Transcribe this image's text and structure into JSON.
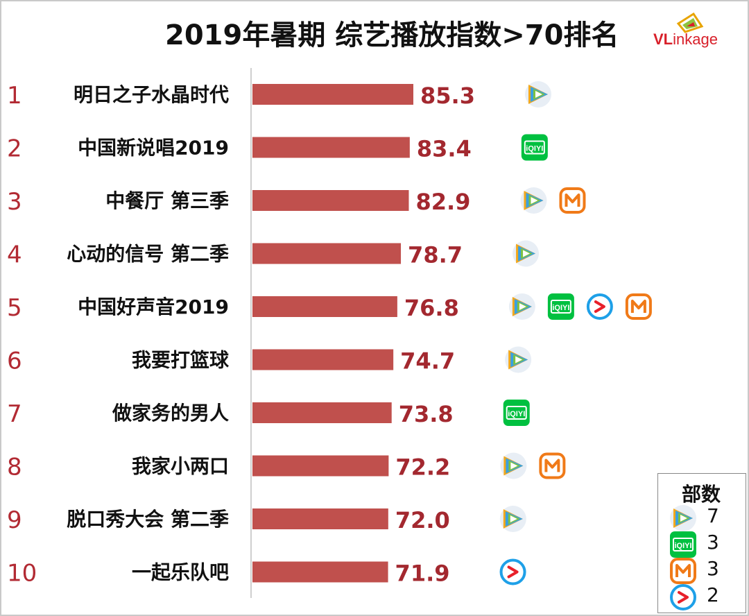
{
  "title": "2019年暑期 综艺播放指数>70排名",
  "brand": {
    "first": "VL",
    "rest": "inkage"
  },
  "colors": {
    "bar": "#c0504d",
    "rank": "#b22a33",
    "value": "#a3282f"
  },
  "chart_data": {
    "type": "bar",
    "orientation": "horizontal",
    "title": "2019年暑期 综艺播放指数>70排名",
    "ranks": [
      "1",
      "2",
      "3",
      "4",
      "5",
      "6",
      "7",
      "8",
      "9",
      "10"
    ],
    "categories": [
      "明日之子水晶时代",
      "中国新说唱2019",
      "中餐厅 第三季",
      "心动的信号 第二季",
      "中国好声音2019",
      "我要打篮球",
      "做家务的男人",
      "我家小两口",
      "脱口秀大会 第二季",
      "一起乐队吧"
    ],
    "values": [
      85.3,
      83.4,
      82.9,
      78.7,
      76.8,
      74.7,
      73.8,
      72.2,
      72.0,
      71.9
    ],
    "value_labels": [
      "85.3",
      "83.4",
      "82.9",
      "78.7",
      "76.8",
      "74.7",
      "73.8",
      "72.2",
      "72.0",
      "71.9"
    ],
    "platforms": [
      [
        "tencent-video-icon"
      ],
      [
        "iqiyi-icon"
      ],
      [
        "tencent-video-icon",
        "mangotv-icon"
      ],
      [
        "tencent-video-icon"
      ],
      [
        "tencent-video-icon",
        "iqiyi-icon",
        "youku-icon",
        "mangotv-icon"
      ],
      [
        "tencent-video-icon"
      ],
      [
        "iqiyi-icon"
      ],
      [
        "tencent-video-icon",
        "mangotv-icon"
      ],
      [
        "tencent-video-icon"
      ],
      [
        "youku-icon"
      ]
    ],
    "grid": false,
    "legend_position": "bottom-right"
  },
  "legend": {
    "title": "部数",
    "items": [
      {
        "icon": "tencent-video-icon",
        "count": "7"
      },
      {
        "icon": "iqiyi-icon",
        "count": "3"
      },
      {
        "icon": "mangotv-icon",
        "count": "3"
      },
      {
        "icon": "youku-icon",
        "count": "2"
      }
    ]
  }
}
